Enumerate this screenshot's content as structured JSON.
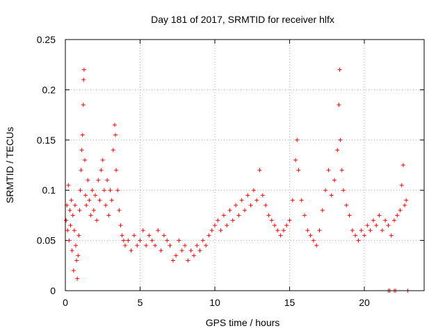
{
  "chart_data": {
    "type": "scatter",
    "title": "Day 181 of 2017, SRMTID for receiver hlfx",
    "xlabel": "GPS time / hours",
    "ylabel": "SRMTID / TECUs",
    "xlim": [
      0,
      24
    ],
    "ylim": [
      0,
      0.25
    ],
    "xticks": [
      0,
      5,
      10,
      15,
      20
    ],
    "xtick_labels": [
      "0",
      "5",
      "10",
      "15",
      "20"
    ],
    "yticks": [
      0,
      0.05,
      0.1,
      0.15,
      0.2,
      0.25
    ],
    "ytick_labels": [
      "0",
      "0.05",
      "0.1",
      "0.15",
      "0.2",
      "0.25"
    ],
    "grid": true,
    "marker": "+",
    "color": "#ff0000",
    "series": [
      {
        "name": "SRMTID",
        "points": [
          [
            0.05,
            0.07
          ],
          [
            0.1,
            0.085
          ],
          [
            0.15,
            0.06
          ],
          [
            0.2,
            0.105
          ],
          [
            0.25,
            0.05
          ],
          [
            0.3,
            0.08
          ],
          [
            0.35,
            0.065
          ],
          [
            0.4,
            0.09
          ],
          [
            0.45,
            0.04
          ],
          [
            0.5,
            0.075
          ],
          [
            0.55,
            0.02
          ],
          [
            0.6,
            0.06
          ],
          [
            0.65,
            0.085
          ],
          [
            0.7,
            0.045
          ],
          [
            0.75,
            0.03
          ],
          [
            0.8,
            0.012
          ],
          [
            0.85,
            0.035
          ],
          [
            0.9,
            0.055
          ],
          [
            0.95,
            0.08
          ],
          [
            1.0,
            0.1
          ],
          [
            1.05,
            0.12
          ],
          [
            1.1,
            0.14
          ],
          [
            1.15,
            0.155
          ],
          [
            1.2,
            0.185
          ],
          [
            1.22,
            0.21
          ],
          [
            1.25,
            0.22
          ],
          [
            1.3,
            0.13
          ],
          [
            1.35,
            0.095
          ],
          [
            1.4,
            0.085
          ],
          [
            1.5,
            0.11
          ],
          [
            1.6,
            0.09
          ],
          [
            1.7,
            0.075
          ],
          [
            1.8,
            0.1
          ],
          [
            1.9,
            0.08
          ],
          [
            2.0,
            0.095
          ],
          [
            2.1,
            0.07
          ],
          [
            2.2,
            0.11
          ],
          [
            2.3,
            0.09
          ],
          [
            2.4,
            0.12
          ],
          [
            2.5,
            0.13
          ],
          [
            2.6,
            0.1
          ],
          [
            2.7,
            0.085
          ],
          [
            2.8,
            0.11
          ],
          [
            2.9,
            0.075
          ],
          [
            3.0,
            0.1
          ],
          [
            3.1,
            0.09
          ],
          [
            3.2,
            0.14
          ],
          [
            3.3,
            0.165
          ],
          [
            3.35,
            0.155
          ],
          [
            3.4,
            0.12
          ],
          [
            3.5,
            0.1
          ],
          [
            3.6,
            0.08
          ],
          [
            3.7,
            0.065
          ],
          [
            3.8,
            0.055
          ],
          [
            3.9,
            0.05
          ],
          [
            4.0,
            0.045
          ],
          [
            4.2,
            0.05
          ],
          [
            4.4,
            0.04
          ],
          [
            4.6,
            0.055
          ],
          [
            4.8,
            0.045
          ],
          [
            5.0,
            0.05
          ],
          [
            5.2,
            0.06
          ],
          [
            5.4,
            0.045
          ],
          [
            5.6,
            0.055
          ],
          [
            5.8,
            0.05
          ],
          [
            6.0,
            0.045
          ],
          [
            6.2,
            0.06
          ],
          [
            6.4,
            0.04
          ],
          [
            6.6,
            0.055
          ],
          [
            6.8,
            0.05
          ],
          [
            7.0,
            0.045
          ],
          [
            7.2,
            0.03
          ],
          [
            7.4,
            0.035
          ],
          [
            7.6,
            0.05
          ],
          [
            7.8,
            0.04
          ],
          [
            8.0,
            0.045
          ],
          [
            8.2,
            0.03
          ],
          [
            8.4,
            0.04
          ],
          [
            8.6,
            0.035
          ],
          [
            8.8,
            0.045
          ],
          [
            9.0,
            0.04
          ],
          [
            9.2,
            0.05
          ],
          [
            9.4,
            0.045
          ],
          [
            9.6,
            0.055
          ],
          [
            9.8,
            0.06
          ],
          [
            10.0,
            0.065
          ],
          [
            10.2,
            0.07
          ],
          [
            10.4,
            0.06
          ],
          [
            10.6,
            0.075
          ],
          [
            10.8,
            0.065
          ],
          [
            11.0,
            0.08
          ],
          [
            11.2,
            0.07
          ],
          [
            11.4,
            0.085
          ],
          [
            11.6,
            0.075
          ],
          [
            11.8,
            0.09
          ],
          [
            12.0,
            0.08
          ],
          [
            12.2,
            0.095
          ],
          [
            12.4,
            0.085
          ],
          [
            12.6,
            0.1
          ],
          [
            12.8,
            0.09
          ],
          [
            13.0,
            0.12
          ],
          [
            13.2,
            0.095
          ],
          [
            13.4,
            0.085
          ],
          [
            13.6,
            0.075
          ],
          [
            13.8,
            0.07
          ],
          [
            14.0,
            0.065
          ],
          [
            14.2,
            0.06
          ],
          [
            14.4,
            0.055
          ],
          [
            14.6,
            0.06
          ],
          [
            14.8,
            0.065
          ],
          [
            15.0,
            0.07
          ],
          [
            15.2,
            0.09
          ],
          [
            15.4,
            0.13
          ],
          [
            15.5,
            0.15
          ],
          [
            15.6,
            0.12
          ],
          [
            15.8,
            0.09
          ],
          [
            16.0,
            0.075
          ],
          [
            16.2,
            0.06
          ],
          [
            16.4,
            0.055
          ],
          [
            16.6,
            0.05
          ],
          [
            16.8,
            0.045
          ],
          [
            17.0,
            0.06
          ],
          [
            17.2,
            0.08
          ],
          [
            17.4,
            0.1
          ],
          [
            17.6,
            0.12
          ],
          [
            17.8,
            0.095
          ],
          [
            18.0,
            0.11
          ],
          [
            18.2,
            0.14
          ],
          [
            18.3,
            0.185
          ],
          [
            18.35,
            0.22
          ],
          [
            18.4,
            0.15
          ],
          [
            18.5,
            0.12
          ],
          [
            18.6,
            0.1
          ],
          [
            18.8,
            0.085
          ],
          [
            19.0,
            0.075
          ],
          [
            19.2,
            0.06
          ],
          [
            19.4,
            0.055
          ],
          [
            19.6,
            0.05
          ],
          [
            19.8,
            0.06
          ],
          [
            20.0,
            0.055
          ],
          [
            20.2,
            0.065
          ],
          [
            20.4,
            0.06
          ],
          [
            20.6,
            0.07
          ],
          [
            20.8,
            0.065
          ],
          [
            21.0,
            0.075
          ],
          [
            21.2,
            0.06
          ],
          [
            21.4,
            0.07
          ],
          [
            21.6,
            0.065
          ],
          [
            21.8,
            0.055
          ],
          [
            22.0,
            0.07
          ],
          [
            22.2,
            0.075
          ],
          [
            22.4,
            0.08
          ],
          [
            22.5,
            0.105
          ],
          [
            22.6,
            0.125
          ],
          [
            22.7,
            0.085
          ],
          [
            22.8,
            0.09
          ],
          [
            21.6,
            0.0
          ],
          [
            21.7,
            0.0
          ],
          [
            22.0,
            0.0
          ],
          [
            22.1,
            0.0
          ],
          [
            22.9,
            0.0
          ]
        ]
      }
    ]
  }
}
